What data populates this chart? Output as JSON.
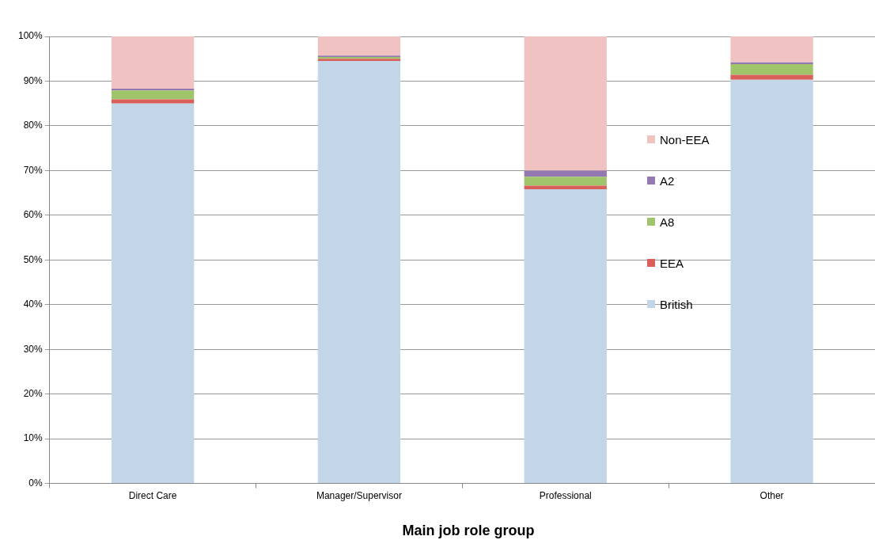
{
  "chart_data": {
    "type": "bar",
    "stacked": true,
    "xlabel": "Main job role group",
    "categories": [
      "Direct Care",
      "Manager/Supervisor",
      "Professional",
      "Other"
    ],
    "series": [
      {
        "name": "British",
        "color": "#c2d6e8",
        "values": [
          85.0,
          94.5,
          65.8,
          90.3
        ]
      },
      {
        "name": "EEA",
        "color": "#d9605a",
        "values": [
          0.9,
          0.5,
          0.8,
          1.1
        ]
      },
      {
        "name": "A8",
        "color": "#a0c46a",
        "values": [
          2.0,
          0.4,
          2.0,
          2.4
        ]
      },
      {
        "name": "A2",
        "color": "#9478b2",
        "values": [
          0.4,
          0.3,
          1.4,
          0.4
        ]
      },
      {
        "name": "Non-EEA",
        "color": "#f0c2c2",
        "values": [
          11.7,
          4.3,
          30.0,
          5.8
        ]
      }
    ],
    "ylim": [
      0,
      100
    ],
    "yticks": [
      {
        "value": 0,
        "label": "0%"
      },
      {
        "value": 10,
        "label": "10%"
      },
      {
        "value": 20,
        "label": "20%"
      },
      {
        "value": 30,
        "label": "30%"
      },
      {
        "value": 40,
        "label": "40%"
      },
      {
        "value": 50,
        "label": "50%"
      },
      {
        "value": 60,
        "label": "60%"
      },
      {
        "value": 70,
        "label": "70%"
      },
      {
        "value": 80,
        "label": "80%"
      },
      {
        "value": 90,
        "label": "90%"
      },
      {
        "value": 100,
        "label": "100%"
      }
    ],
    "grid": "y",
    "legend": "right"
  }
}
